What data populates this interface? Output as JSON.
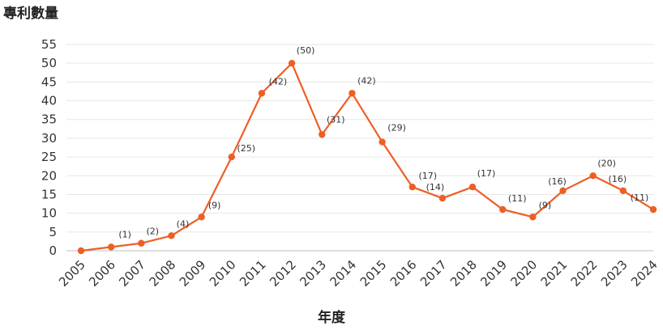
{
  "chart_data": {
    "type": "line",
    "ylabel": "專利數量",
    "xlabel": "年度",
    "x": [
      "2005",
      "2006",
      "2007",
      "2008",
      "2009",
      "2010",
      "2011",
      "2012",
      "2013",
      "2014",
      "2015",
      "2016",
      "2017",
      "2018",
      "2019",
      "2020",
      "2021",
      "2022",
      "2023",
      "2024"
    ],
    "series": [
      {
        "values": [
          0,
          1,
          2,
          4,
          9,
          25,
          42,
          50,
          31,
          42,
          29,
          17,
          14,
          17,
          11,
          9,
          16,
          20,
          16,
          11
        ],
        "data_labels": [
          "",
          "(1)",
          "(2)",
          "(4)",
          "(9)",
          "(25)",
          "(42)",
          "(50)",
          "(31)",
          "(42)",
          "(29)",
          "(17)",
          "(14)",
          "(17)",
          "(11)",
          "(9)",
          "(16)",
          "(20)",
          "(16)",
          "(11)"
        ],
        "color": "#ED5F25"
      }
    ],
    "yticks": [
      "0",
      "5",
      "10",
      "15",
      "20",
      "25",
      "30",
      "35",
      "40",
      "45",
      "50",
      "55"
    ],
    "ylim": [
      0,
      55
    ],
    "grid": true,
    "legend": "none"
  }
}
